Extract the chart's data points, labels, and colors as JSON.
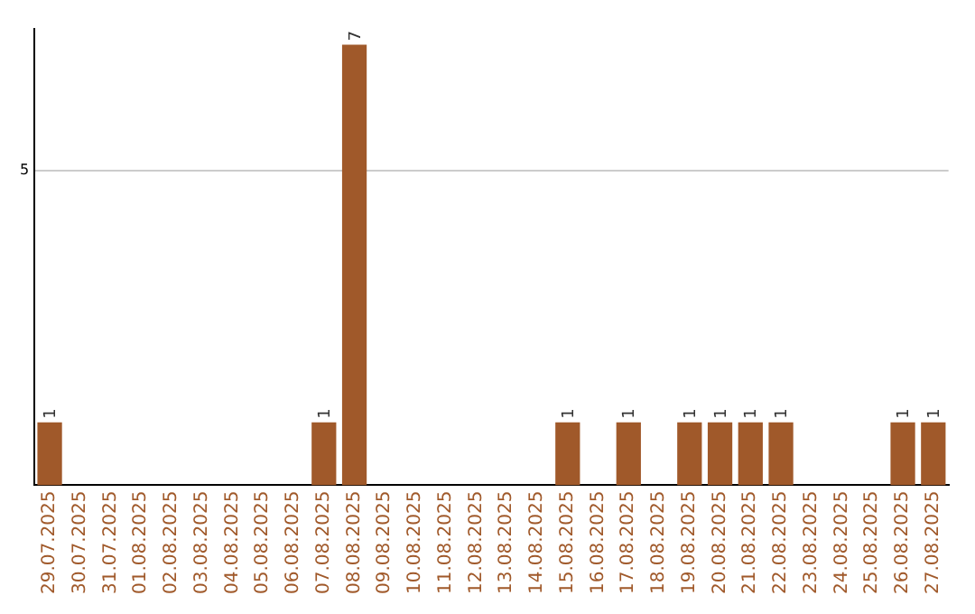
{
  "chart_data": {
    "type": "bar",
    "categories": [
      "29.07.2025",
      "30.07.2025",
      "31.07.2025",
      "01.08.2025",
      "02.08.2025",
      "03.08.2025",
      "04.08.2025",
      "05.08.2025",
      "06.08.2025",
      "07.08.2025",
      "08.08.2025",
      "09.08.2025",
      "10.08.2025",
      "11.08.2025",
      "12.08.2025",
      "13.08.2025",
      "14.08.2025",
      "15.08.2025",
      "16.08.2025",
      "17.08.2025",
      "18.08.2025",
      "19.08.2025",
      "20.08.2025",
      "21.08.2025",
      "22.08.2025",
      "23.08.2025",
      "24.08.2025",
      "25.08.2025",
      "26.08.2025",
      "27.08.2025"
    ],
    "values": [
      1,
      0,
      0,
      0,
      0,
      0,
      0,
      0,
      0,
      1,
      7,
      0,
      0,
      0,
      0,
      0,
      0,
      1,
      0,
      1,
      0,
      1,
      1,
      1,
      1,
      0,
      0,
      0,
      1,
      1
    ],
    "value_labels": [
      "1",
      null,
      null,
      null,
      null,
      null,
      null,
      null,
      null,
      "1",
      "7",
      null,
      null,
      null,
      null,
      null,
      null,
      "1",
      null,
      "1",
      null,
      "1",
      "1",
      "1",
      "1",
      null,
      null,
      null,
      "1",
      "1"
    ],
    "color": "#a0592a",
    "ylim": [
      0,
      7.25
    ],
    "yticks": [
      5
    ],
    "grid": "y",
    "legend": false
  }
}
